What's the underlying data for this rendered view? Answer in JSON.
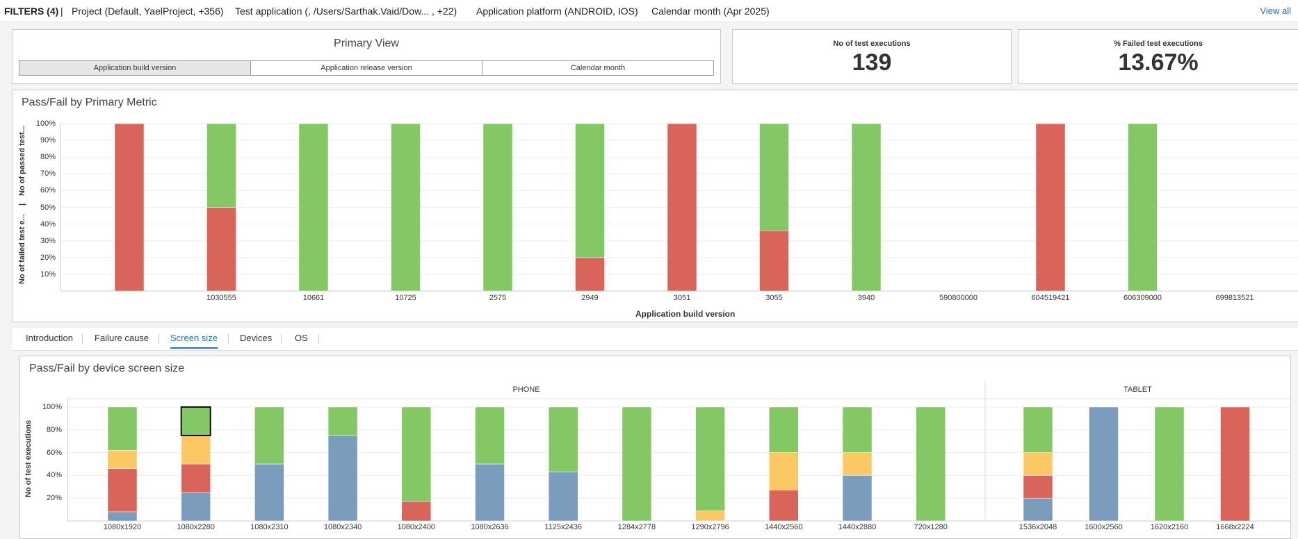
{
  "filters": {
    "label": "FILTERS (4)",
    "sep": "|",
    "project": "Project  (Default, YaelProject, +356)",
    "test_application": "Test application  (, /Users/Sarthak.Vaid/Dow...  , +22)",
    "platform": "Application platform  (ANDROID, IOS)",
    "calendar": "Calendar month  (Apr 2025)",
    "view_all": "View all"
  },
  "primary_view": {
    "title": "Primary View",
    "tabs": [
      {
        "label": "Application build version",
        "active": true
      },
      {
        "label": "Application release version",
        "active": false
      },
      {
        "label": "Calendar month",
        "active": false
      }
    ]
  },
  "kpis": [
    {
      "label": "No of test executions",
      "value": "139"
    },
    {
      "label": "% Failed test executions",
      "value": "13.67%"
    }
  ],
  "colors": {
    "pass": "#84c865",
    "fail": "#d9645a",
    "warn": "#fbc864",
    "other": "#7a9cbd"
  },
  "chart_data": [
    {
      "type": "bar",
      "title": "Pass/Fail by Primary Metric",
      "xlabel": "Application build version",
      "ylabel_left": "No of failed test e...",
      "ylabel_sep": "|",
      "ylabel_right": "No of passed test...",
      "yticks": [
        "10%",
        "20%",
        "30%",
        "40%",
        "50%",
        "60%",
        "70%",
        "80%",
        "90%",
        "100%"
      ],
      "ylim": [
        0,
        100
      ],
      "categories": [
        "",
        "1030555",
        "10661",
        "10725",
        "2575",
        "2949",
        "3051",
        "3055",
        "3940",
        "590800000",
        "604519421",
        "606309000",
        "699813521"
      ],
      "series": [
        {
          "color": "fail",
          "values": [
            100,
            50,
            0,
            0,
            0,
            20,
            100,
            36,
            0,
            0,
            100,
            0,
            0
          ]
        },
        {
          "color": "pass",
          "values": [
            0,
            50,
            100,
            100,
            100,
            80,
            0,
            64,
            100,
            0,
            0,
            100,
            0
          ]
        }
      ]
    },
    {
      "type": "bar",
      "title": "Pass/Fail by device screen size",
      "ylabel": "No of test executions",
      "yticks": [
        "20%",
        "40%",
        "60%",
        "80%",
        "100%"
      ],
      "ylim": [
        0,
        100
      ],
      "groups": [
        {
          "name": "PHONE",
          "categories": [
            "1080x1920",
            "1080x2280",
            "1080x2310",
            "1080x2340",
            "1080x2400",
            "1080x2636",
            "1125x2436",
            "1284x2778",
            "1290x2796",
            "1440x2560",
            "1440x2880",
            "720x1280"
          ]
        },
        {
          "name": "TABLET",
          "categories": [
            "1536x2048",
            "1600x2560",
            "1620x2160",
            "1668x2224"
          ]
        }
      ],
      "series": [
        {
          "color": "other",
          "values": [
            8,
            25,
            50,
            75,
            0,
            50,
            43,
            0,
            0,
            0,
            40,
            0,
            20,
            100,
            0,
            0
          ]
        },
        {
          "color": "fail",
          "values": [
            38,
            25,
            0,
            0,
            17,
            0,
            0,
            0,
            0,
            27,
            0,
            0,
            20,
            0,
            0,
            100
          ]
        },
        {
          "color": "warn",
          "values": [
            16,
            25,
            0,
            0,
            0,
            0,
            0,
            0,
            9,
            33,
            20,
            0,
            20,
            0,
            0,
            0
          ]
        },
        {
          "color": "pass",
          "values": [
            38,
            25,
            50,
            25,
            83,
            50,
            57,
            100,
            91,
            40,
            40,
            100,
            40,
            0,
            100,
            0
          ]
        }
      ],
      "selected_index": 1
    }
  ],
  "tabs": [
    {
      "label": "Introduction",
      "active": false
    },
    {
      "label": "Failure cause",
      "active": false
    },
    {
      "label": "Screen size",
      "active": true
    },
    {
      "label": "Devices",
      "active": false
    },
    {
      "label": "OS",
      "active": false
    }
  ]
}
